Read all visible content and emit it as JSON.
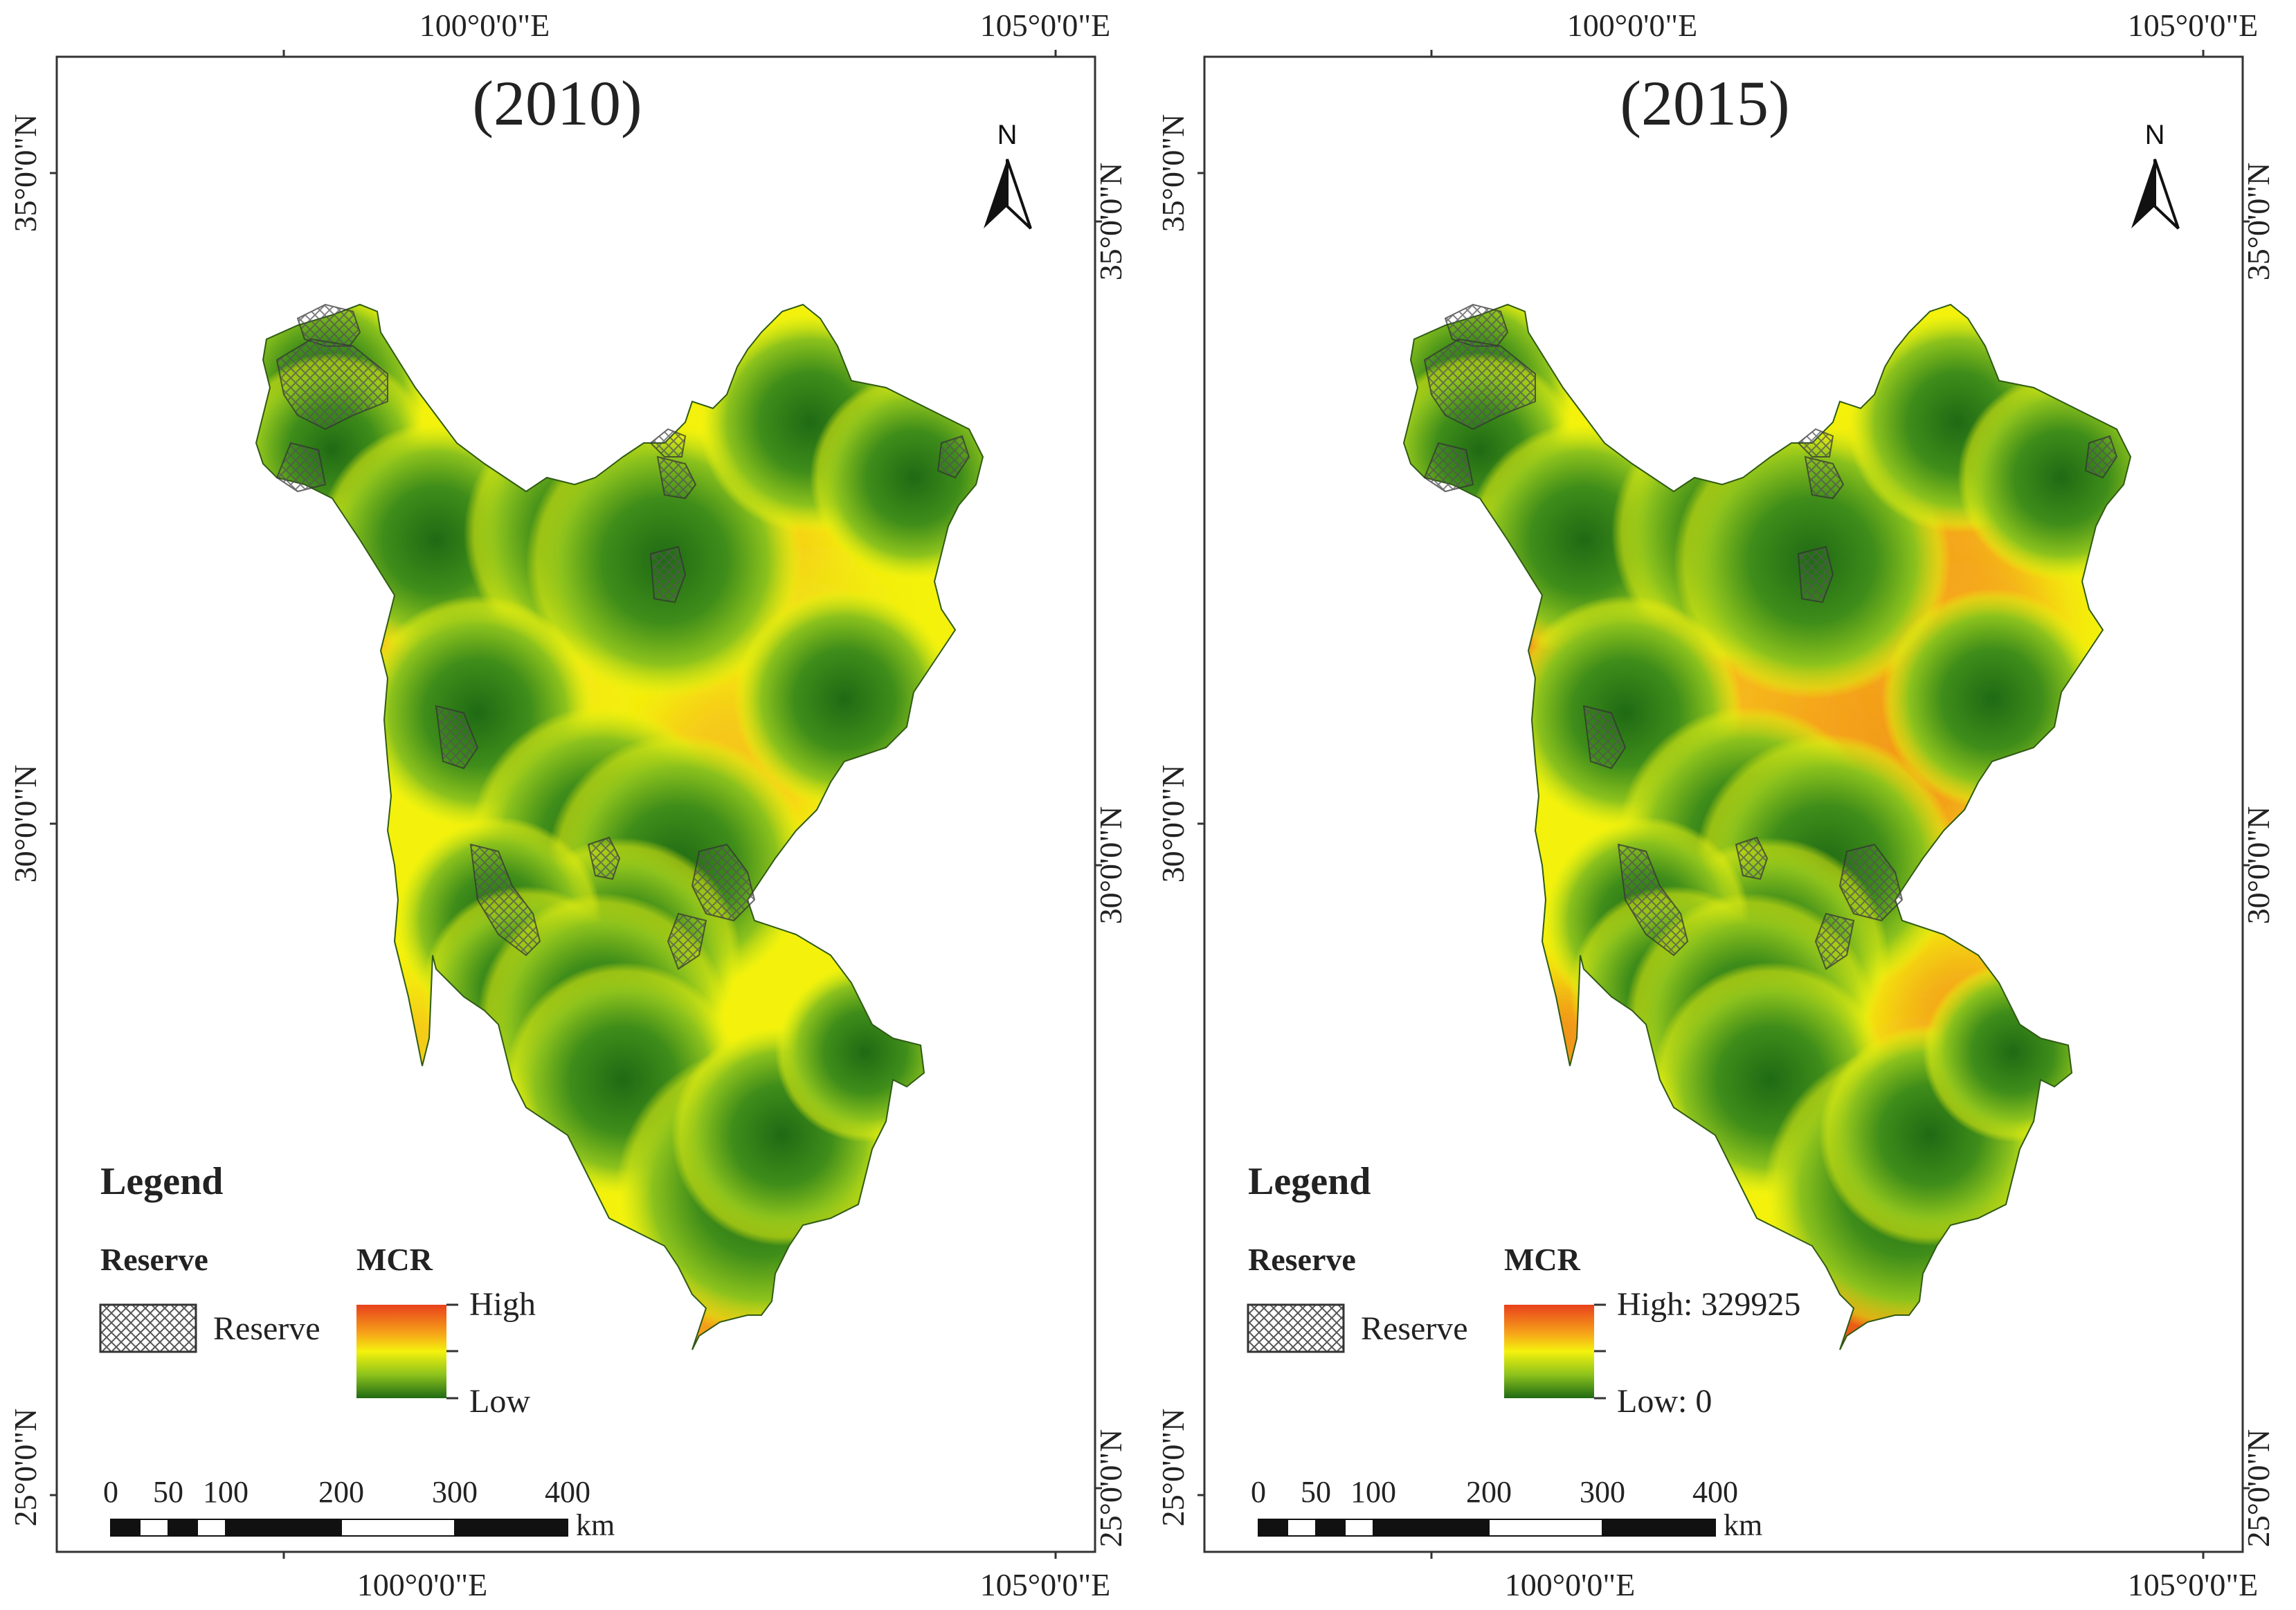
{
  "panels": [
    {
      "title": "(2010)",
      "top_ticks": [
        "100°0'0\"E",
        "105°0'0\"E"
      ],
      "bottom_ticks": [
        "100°0'0\"E",
        "105°0'0\"E"
      ],
      "left_ticks": [
        "35°0'0\"N",
        "30°0'0\"N",
        "25°0'0\"N"
      ],
      "right_ticks": [
        "35°0'0\"N",
        "30°0'0\"N",
        "25°0'0\"N"
      ],
      "north_label": "N",
      "legend": {
        "heading": "Legend",
        "reserve_heading": "Reserve",
        "reserve_label": "Reserve",
        "mcr_heading": "MCR",
        "high_label": "High",
        "low_label": "Low"
      },
      "scalebar": {
        "ticks": [
          "0",
          "50",
          "100",
          "200",
          "300",
          "400"
        ],
        "unit": "km"
      }
    },
    {
      "title": "(2015)",
      "top_ticks": [
        "100°0'0\"E",
        "105°0'0\"E"
      ],
      "bottom_ticks": [
        "100°0'0\"E",
        "105°0'0\"E"
      ],
      "left_ticks": [
        "35°0'0\"N",
        "30°0'0\"N",
        "25°0'0\"N"
      ],
      "right_ticks": [
        "35°0'0\"N",
        "30°0'0\"N",
        "25°0'0\"N"
      ],
      "north_label": "N",
      "legend": {
        "heading": "Legend",
        "reserve_heading": "Reserve",
        "reserve_label": "Reserve",
        "mcr_heading": "MCR",
        "high_label": "High: 329925",
        "low_label": "Low: 0"
      },
      "scalebar": {
        "ticks": [
          "0",
          "50",
          "100",
          "200",
          "300",
          "400"
        ],
        "unit": "km"
      }
    }
  ],
  "colors": {
    "high": "#e8401c",
    "mid_high": "#f7a21a",
    "mid": "#f4f20c",
    "mid_low": "#8cc21c",
    "low": "#1f6a14",
    "frame": "#333333"
  }
}
